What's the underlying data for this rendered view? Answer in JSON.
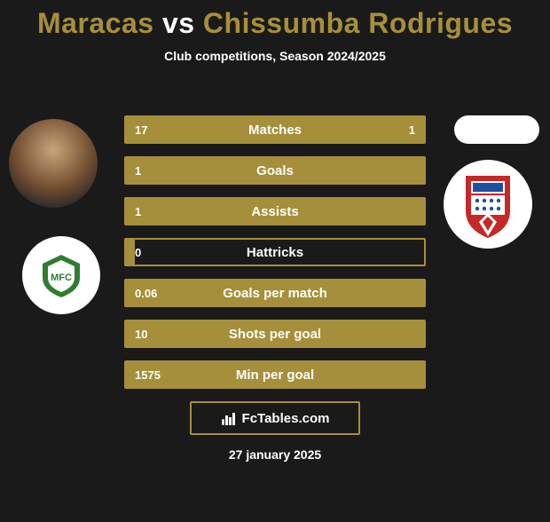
{
  "title": {
    "player1": "Maracas",
    "vs": "vs",
    "player2": "Chissumba Rodrigues"
  },
  "subtitle": "Club competitions, Season 2024/2025",
  "colors": {
    "accent": "#a68f3a",
    "background": "#1a1a1a",
    "text": "#ffffff"
  },
  "stats": {
    "rows": [
      {
        "left": "17",
        "label": "Matches",
        "right": "1",
        "fill_pct": 100
      },
      {
        "left": "1",
        "label": "Goals",
        "right": "",
        "fill_pct": 100
      },
      {
        "left": "1",
        "label": "Assists",
        "right": "",
        "fill_pct": 100
      },
      {
        "left": "0",
        "label": "Hattricks",
        "right": "",
        "fill_pct": 3
      },
      {
        "left": "0.06",
        "label": "Goals per match",
        "right": "",
        "fill_pct": 100
      },
      {
        "left": "10",
        "label": "Shots per goal",
        "right": "",
        "fill_pct": 100
      },
      {
        "left": "1575",
        "label": "Min per goal",
        "right": "",
        "fill_pct": 100
      }
    ]
  },
  "brand": "FcTables.com",
  "date": "27 january 2025",
  "club1_name": "Moreirense",
  "club2_name": "Braga"
}
